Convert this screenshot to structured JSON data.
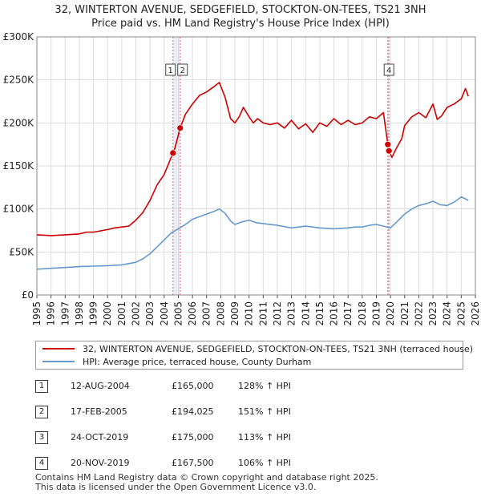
{
  "title_line1": "32, WINTERTON AVENUE, SEDGEFIELD, STOCKTON-ON-TEES, TS21 3NH",
  "title_line2": "Price paid vs. HM Land Registry's House Price Index (HPI)",
  "colors": {
    "property": "#cc0000",
    "hpi": "#6699cc",
    "grid": "#dddddd",
    "marker_line": "#ee6677",
    "shade": "#e8eef8"
  },
  "chart_data": {
    "type": "line",
    "title": "32, WINTERTON AVENUE, SEDGEFIELD, STOCKTON-ON-TEES, TS21 3NH - Price paid vs. HM Land Registry's House Price Index (HPI)",
    "xlabel": "",
    "ylabel": "",
    "xlim": [
      1995,
      2026
    ],
    "ylim": [
      0,
      300000
    ],
    "y_ticks": [
      0,
      50000,
      100000,
      150000,
      200000,
      250000,
      300000
    ],
    "y_tick_labels": [
      "£0",
      "£50K",
      "£100K",
      "£150K",
      "£200K",
      "£250K",
      "£300K"
    ],
    "x_ticks": [
      "1995",
      "1996",
      "1997",
      "1998",
      "1999",
      "2000",
      "2001",
      "2002",
      "2003",
      "2004",
      "2005",
      "2006",
      "2007",
      "2008",
      "2009",
      "2010",
      "2011",
      "2012",
      "2013",
      "2014",
      "2015",
      "2016",
      "2017",
      "2018",
      "2019",
      "2020",
      "2021",
      "2022",
      "2023",
      "2024",
      "2025",
      "2026"
    ],
    "grid": true,
    "series": [
      {
        "name": "32, WINTERTON AVENUE, SEDGEFIELD, STOCKTON-ON-TEES, TS21 3NH (terraced house)",
        "x": [
          1995,
          1996,
          1997,
          1998,
          1998.5,
          1999,
          2000,
          2000.5,
          2001,
          2001.5,
          2002,
          2002.5,
          2003,
          2003.5,
          2004,
          2004.62,
          2004.75,
          2005.13,
          2005.5,
          2006,
          2006.5,
          2007,
          2007.5,
          2007.9,
          2008.3,
          2008.7,
          2009,
          2009.3,
          2009.6,
          2010,
          2010.3,
          2010.6,
          2011,
          2011.5,
          2012,
          2012.5,
          2013,
          2013.5,
          2014,
          2014.5,
          2015,
          2015.5,
          2016,
          2016.5,
          2017,
          2017.5,
          2018,
          2018.5,
          2019,
          2019.5,
          2019.81,
          2019.89,
          2020.1,
          2020.4,
          2020.8,
          2021,
          2021.5,
          2022,
          2022.5,
          2023,
          2023.3,
          2023.6,
          2024,
          2024.5,
          2025,
          2025.3,
          2025.5
        ],
        "values": [
          70000,
          69000,
          70000,
          71000,
          73000,
          73000,
          76000,
          78000,
          79000,
          80000,
          87000,
          96000,
          110000,
          128000,
          140000,
          165000,
          170000,
          194025,
          210000,
          222000,
          232000,
          236000,
          242000,
          247000,
          230000,
          205000,
          200000,
          207000,
          218000,
          207000,
          200000,
          205000,
          200000,
          198000,
          200000,
          194000,
          203000,
          193000,
          199000,
          189000,
          200000,
          196000,
          205000,
          198000,
          203000,
          198000,
          200000,
          207000,
          205000,
          212000,
          175000,
          167500,
          160000,
          170000,
          182000,
          197000,
          207000,
          212000,
          206000,
          222000,
          204000,
          208000,
          218000,
          222000,
          228000,
          240000,
          231000
        ]
      },
      {
        "name": "HPI: Average price, terraced house, County Durham",
        "x": [
          1995,
          1996,
          1997,
          1998,
          1999,
          2000,
          2001,
          2001.5,
          2002,
          2002.5,
          2003,
          2003.5,
          2004,
          2004.5,
          2005,
          2005.5,
          2006,
          2006.5,
          2007,
          2007.5,
          2007.9,
          2008.3,
          2008.7,
          2009,
          2009.5,
          2010,
          2010.5,
          2011,
          2012,
          2013,
          2014,
          2015,
          2016,
          2017,
          2017.5,
          2018,
          2018.5,
          2019,
          2019.5,
          2020,
          2020.5,
          2021,
          2021.5,
          2022,
          2022.5,
          2023,
          2023.5,
          2024,
          2024.5,
          2025,
          2025.5
        ],
        "values": [
          30000,
          31000,
          32000,
          33000,
          33500,
          34000,
          35000,
          36500,
          38000,
          42000,
          48000,
          56000,
          64000,
          72000,
          77000,
          82000,
          88000,
          91000,
          94000,
          97000,
          100000,
          95000,
          86000,
          82000,
          85000,
          87000,
          84000,
          83000,
          81000,
          78000,
          80000,
          78000,
          77000,
          78000,
          79000,
          79000,
          81000,
          82000,
          80000,
          78000,
          86000,
          94000,
          100000,
          104000,
          106000,
          109000,
          105000,
          104000,
          108000,
          114000,
          110000
        ]
      }
    ],
    "sales": [
      {
        "label": "1",
        "date": "12-AUG-2004",
        "x": 2004.62,
        "price": 165000,
        "price_text": "£165,000",
        "hpi_text": "128% ↑ HPI"
      },
      {
        "label": "2",
        "date": "17-FEB-2005",
        "x": 2005.13,
        "price": 194025,
        "price_text": "£194,025",
        "hpi_text": "151% ↑ HPI"
      },
      {
        "label": "3",
        "date": "24-OCT-2019",
        "x": 2019.81,
        "price": 175000,
        "price_text": "£175,000",
        "hpi_text": "113% ↑ HPI"
      },
      {
        "label": "4",
        "date": "20-NOV-2019",
        "x": 2019.89,
        "price": 167500,
        "price_text": "£167,500",
        "hpi_text": "106% ↑ HPI"
      }
    ],
    "marker_labels": [
      {
        "x": 2004.62,
        "label": "1"
      },
      {
        "x": 2005.13,
        "label": "2"
      },
      {
        "x": 2019.89,
        "label": "4"
      }
    ],
    "legend_position": "below"
  },
  "legend": {
    "property_label": "32, WINTERTON AVENUE, SEDGEFIELD, STOCKTON-ON-TEES, TS21 3NH (terraced house)",
    "hpi_label": "HPI: Average price, terraced house, County Durham"
  },
  "footer": {
    "line1": "Contains HM Land Registry data © Crown copyright and database right 2025.",
    "line2": "This data is licensed under the Open Government Licence v3.0."
  }
}
